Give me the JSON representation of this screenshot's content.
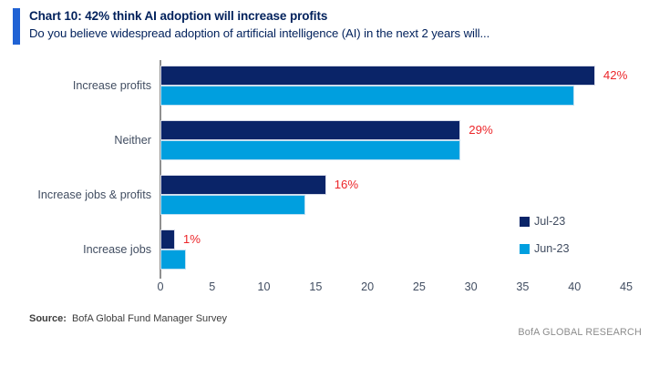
{
  "header": {
    "title": "Chart 10: 42% think AI adoption will increase profits",
    "subtitle": "Do you believe widespread adoption of artificial intelligence (AI) in the next 2 years will...",
    "accent_color": "#2062d4",
    "title_color": "#00205b"
  },
  "chart_data": {
    "type": "bar",
    "orientation": "horizontal",
    "title": "Chart 10: 42% think AI adoption will increase profits",
    "subtitle_question": "Do you believe widespread adoption of artificial intelligence (AI) in the next 2 years will...",
    "categories": [
      "Increase profits",
      "Neither",
      "Increase jobs & profits",
      "Increase jobs"
    ],
    "series": [
      {
        "name": "Jul-23",
        "color": "#0a2468",
        "values": [
          42,
          29,
          16,
          1.4
        ],
        "data_labels": [
          "42%",
          "29%",
          "16%",
          "1%"
        ]
      },
      {
        "name": "Jun-23",
        "color": "#009fdf",
        "values": [
          40,
          29,
          14,
          2.5
        ],
        "data_labels": null
      }
    ],
    "xlim": [
      0,
      45
    ],
    "xticks": [
      0,
      5,
      10,
      15,
      20,
      25,
      30,
      35,
      40,
      45
    ],
    "ylabel": "",
    "xlabel": "",
    "grid": false,
    "legend_position": "right-middle",
    "data_label_color": "#ec2529"
  },
  "footer": {
    "source_label": "Source:",
    "source_text": "BofA Global Fund Manager Survey",
    "brand": "BofA GLOBAL RESEARCH"
  }
}
